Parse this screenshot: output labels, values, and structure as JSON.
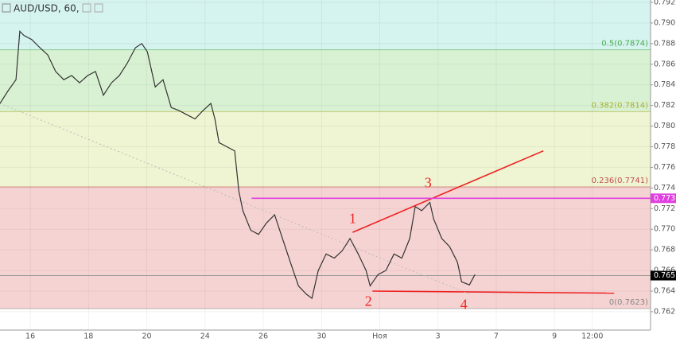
{
  "chart_data": {
    "type": "line",
    "title": "AUD/USD, 60,",
    "xlim": [
      -1.04,
      21.3
    ],
    "ylim": [
      0.76022,
      0.79223
    ],
    "xticks": [
      {
        "value": 0,
        "label": "16"
      },
      {
        "value": 2,
        "label": "18"
      },
      {
        "value": 4,
        "label": "20"
      },
      {
        "value": 6,
        "label": "24"
      },
      {
        "value": 8,
        "label": "26"
      },
      {
        "value": 10,
        "label": "30"
      },
      {
        "value": 12,
        "label": "Ноя"
      },
      {
        "value": 14,
        "label": "3"
      },
      {
        "value": 16,
        "label": "7"
      },
      {
        "value": 18,
        "label": "9"
      },
      {
        "value": 19.3,
        "label": "12:00"
      }
    ],
    "yticks": [
      {
        "value": 0.762,
        "label": "0.7620"
      },
      {
        "value": 0.764,
        "label": "0.7640"
      },
      {
        "value": 0.766,
        "label": "0.7660"
      },
      {
        "value": 0.768,
        "label": "0.7680"
      },
      {
        "value": 0.77,
        "label": "0.7700"
      },
      {
        "value": 0.772,
        "label": "0.7720"
      },
      {
        "value": 0.774,
        "label": "0.7740"
      },
      {
        "value": 0.776,
        "label": "0.7760"
      },
      {
        "value": 0.778,
        "label": "0.7780"
      },
      {
        "value": 0.78,
        "label": "0.7800"
      },
      {
        "value": 0.782,
        "label": "0.7820"
      },
      {
        "value": 0.784,
        "label": "0.7840"
      },
      {
        "value": 0.786,
        "label": "0.7860"
      },
      {
        "value": 0.788,
        "label": "0.7880"
      },
      {
        "value": 0.79,
        "label": "0.7900"
      },
      {
        "value": 0.792,
        "label": "0.7920"
      }
    ],
    "series": [
      {
        "name": "AUD/USD",
        "color": "#333333",
        "x": [
          -1.04,
          -0.77,
          -0.49,
          -0.36,
          -0.22,
          0.05,
          0.33,
          0.6,
          0.87,
          1.15,
          1.42,
          1.69,
          1.97,
          2.24,
          2.51,
          2.79,
          3.06,
          3.33,
          3.61,
          3.83,
          4.02,
          4.29,
          4.56,
          4.84,
          5.11,
          5.38,
          5.66,
          5.93,
          6.2,
          6.34,
          6.48,
          6.75,
          7.02,
          7.16,
          7.3,
          7.57,
          7.84,
          8.11,
          8.39,
          8.66,
          8.93,
          9.21,
          9.48,
          9.67,
          9.89,
          10.16,
          10.44,
          10.71,
          10.98,
          11.26,
          11.53,
          11.67,
          11.94,
          12.21,
          12.49,
          12.76,
          13.03,
          13.22,
          13.44,
          13.72,
          13.85,
          14.13,
          14.4,
          14.67,
          14.81,
          15.08,
          15.27
        ],
        "values": [
          0.7822,
          0.7834,
          0.7845,
          0.7892,
          0.7888,
          0.7884,
          0.7876,
          0.7869,
          0.7853,
          0.7845,
          0.7849,
          0.7842,
          0.7849,
          0.7853,
          0.783,
          0.7842,
          0.7849,
          0.7861,
          0.7876,
          0.788,
          0.7872,
          0.7838,
          0.7845,
          0.7818,
          0.7815,
          0.7811,
          0.7807,
          0.7815,
          0.7822,
          0.7807,
          0.7784,
          0.778,
          0.7776,
          0.7737,
          0.7718,
          0.7699,
          0.7695,
          0.7706,
          0.7714,
          0.7691,
          0.7668,
          0.7645,
          0.7637,
          0.7633,
          0.766,
          0.7676,
          0.7672,
          0.7679,
          0.7691,
          0.7676,
          0.766,
          0.7645,
          0.7656,
          0.766,
          0.7676,
          0.7672,
          0.7691,
          0.7722,
          0.7718,
          0.7726,
          0.771,
          0.7691,
          0.7683,
          0.7668,
          0.7649,
          0.7646,
          0.7656
        ]
      }
    ],
    "fib_levels": [
      {
        "value": 0.7623,
        "label": "0(0.7623)",
        "color": "#888888",
        "fill": "#f6d3d3"
      },
      {
        "value": 0.7741,
        "label": "0.236(0.7741)",
        "color": "#c0504d",
        "fill": "#eff4d2"
      },
      {
        "value": 0.7814,
        "label": "0.382(0.7814)",
        "color": "#a8b030",
        "fill": "#d9f1d3"
      },
      {
        "value": 0.7874,
        "label": "0.5(0.7874)",
        "color": "#4caf50",
        "fill": "#d5f3ef"
      }
    ],
    "price_markers": [
      {
        "value": 0.773,
        "label": "0.7730",
        "color": "#e040e0"
      },
      {
        "value": 0.7655,
        "label": "0.7655",
        "color": "#000000"
      }
    ],
    "trendlines": [
      {
        "x": [
          11.07,
          17.62
        ],
        "y": [
          0.7697,
          0.7776
        ],
        "color": "#ee2222"
      },
      {
        "x": [
          11.75,
          20.05
        ],
        "y": [
          0.764,
          0.7638
        ],
        "color": "#ee2222"
      },
      {
        "x": [
          -1.04,
          15.08
        ],
        "y": [
          0.7822,
          0.7637
        ],
        "color": "#bbbbbb"
      }
    ],
    "annotations": [
      {
        "text": "1",
        "x": 11.07,
        "y": 0.7709
      },
      {
        "text": "2",
        "x": 11.61,
        "y": 0.7629
      },
      {
        "text": "3",
        "x": 13.66,
        "y": 0.7744
      },
      {
        "text": "4",
        "x": 14.89,
        "y": 0.7626
      }
    ]
  }
}
